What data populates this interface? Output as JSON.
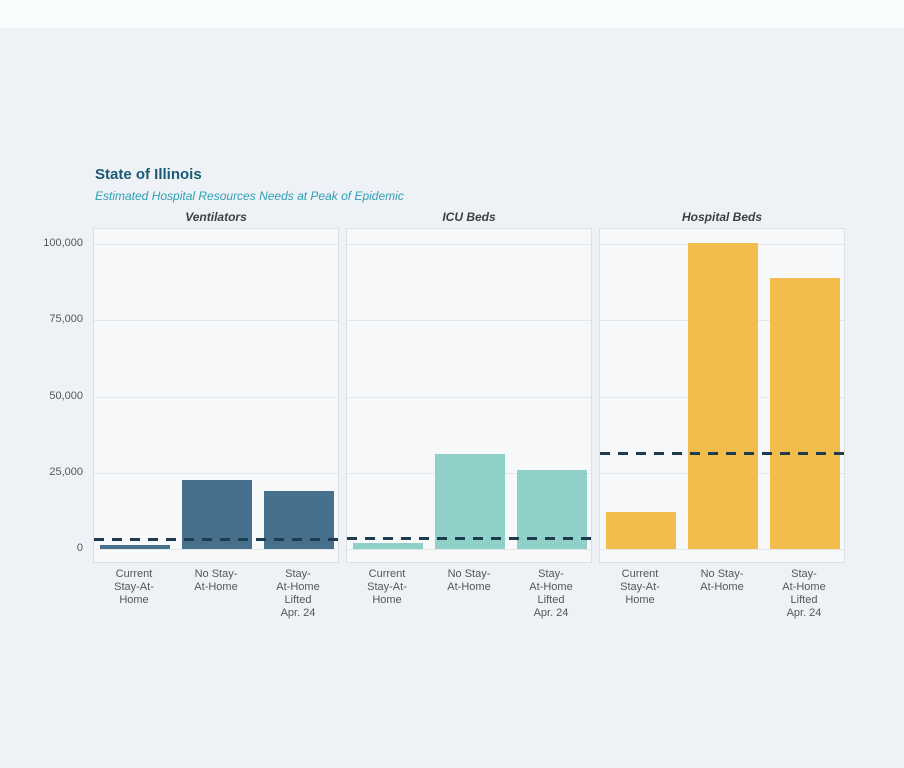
{
  "page": {
    "title": "State of Illinois",
    "subtitle": "Estimated Hospital Resources Needs at Peak of Epidemic"
  },
  "colors": {
    "page_bg": "#eef2f6",
    "top_strip_bg": "#fafdfe",
    "title_text": "#1b5a74",
    "subtitle_text": "#2fa0b4",
    "panel_bg": "#f6f8f9",
    "panel_border": "#dcdfe3",
    "gridline": "#e4e7ea",
    "tick_text": "#565656",
    "capacity_line": "#1e3c50",
    "ventilators_bar": "#46708c",
    "icu_beds_bar": "#8fd0c9",
    "hospital_beds_bar": "#f3bd4d"
  },
  "chart_data": {
    "type": "bar",
    "title": "State of Illinois",
    "subtitle": "Estimated Hospital Resources Needs at Peak of Epidemic",
    "grid": true,
    "legend": false,
    "ylim": [
      -5000,
      105000
    ],
    "y_ticks": [
      0,
      25000,
      50000,
      75000,
      100000
    ],
    "y_tick_labels": [
      "0",
      "25,000",
      "50,000",
      "75,000",
      "100,000"
    ],
    "categories": [
      "Current Stay-At-Home",
      "No Stay-At-Home",
      "Stay-At-Home Lifted Apr. 24"
    ],
    "category_label_lines": [
      [
        "Current",
        "Stay-At-",
        "Home"
      ],
      [
        "No Stay-",
        "At-Home"
      ],
      [
        "Stay-",
        "At-Home",
        "Lifted",
        "Apr. 24"
      ]
    ],
    "panels": [
      {
        "label": "Ventilators",
        "bar_color": "#46708c",
        "values": [
          1400,
          22500,
          19000
        ],
        "capacity_dashed_line": 3200
      },
      {
        "label": "ICU Beds",
        "bar_color": "#8fd0c9",
        "values": [
          2000,
          31000,
          26000
        ],
        "capacity_dashed_line": 3600
      },
      {
        "label": "Hospital Beds",
        "bar_color": "#f3bd4d",
        "values": [
          12000,
          100500,
          89000
        ],
        "capacity_dashed_line": 31500
      }
    ]
  }
}
